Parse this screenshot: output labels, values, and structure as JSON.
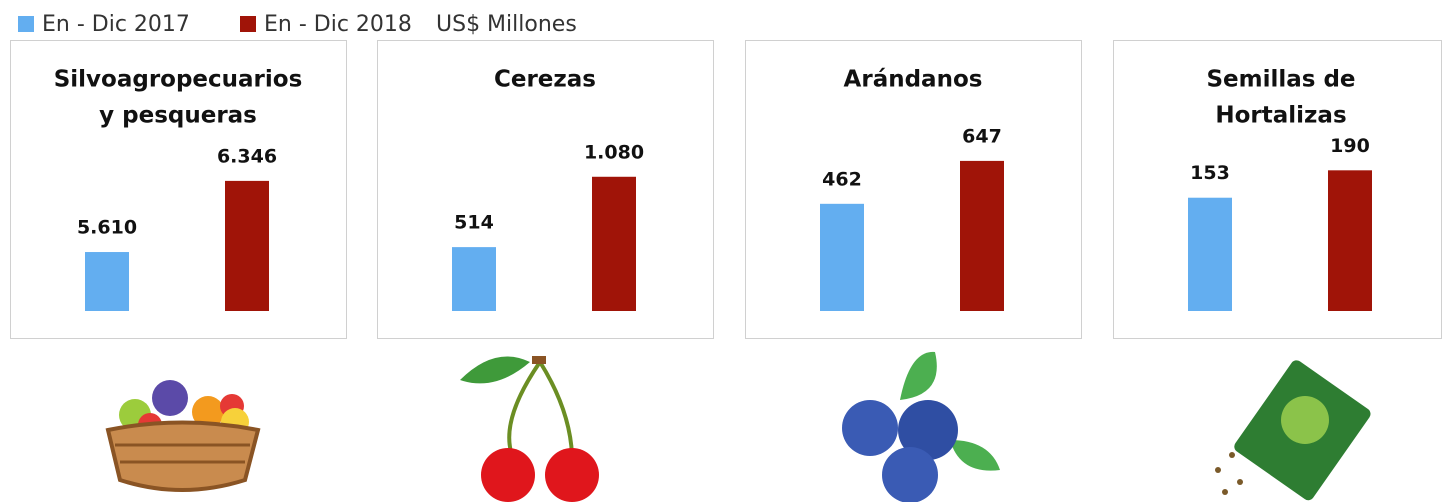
{
  "legend": [
    {
      "name": "En - Dic 2017",
      "color": "#63aef0"
    },
    {
      "name": "En - Dic 2018",
      "color": "#a01408"
    }
  ],
  "unit": "US$ Millones",
  "chart_data": [
    {
      "type": "bar",
      "title": [
        "Silvoagropecuarios",
        "y pesqueras"
      ],
      "values": [
        5610,
        6346
      ],
      "value_labels": [
        "5.610",
        "6.346"
      ],
      "ylim": [
        5000,
        6800
      ]
    },
    {
      "type": "bar",
      "title": [
        "Cerezas"
      ],
      "values": [
        514,
        1080
      ],
      "value_labels": [
        "514",
        "1.080"
      ],
      "ylim": [
        0,
        1400
      ]
    },
    {
      "type": "bar",
      "title": [
        "Arándanos"
      ],
      "values": [
        462,
        647
      ],
      "value_labels": [
        "462",
        "647"
      ],
      "ylim": [
        0,
        750
      ]
    },
    {
      "type": "bar",
      "title": [
        "Semillas de",
        "Hortalizas"
      ],
      "values": [
        153,
        190
      ],
      "value_labels": [
        "153",
        "190"
      ],
      "ylim": [
        0,
        235
      ]
    }
  ]
}
